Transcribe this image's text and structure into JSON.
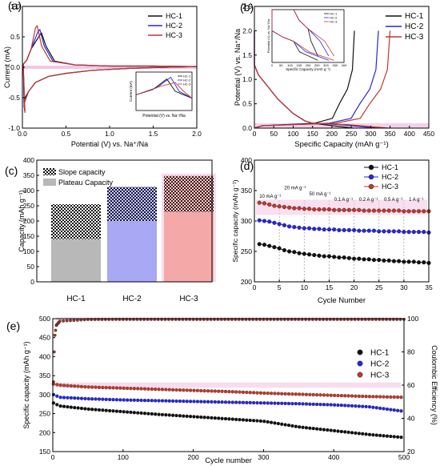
{
  "colors": {
    "HC-1": "#111111",
    "HC-2": "#2626e0",
    "HC-3": "#c0392b",
    "pink_band": "#f2c6e4",
    "slope_gray": "#3a3a3a",
    "plateau_gray": "#b8b8b8"
  },
  "chart_data": [
    {
      "panel": "(a)",
      "type": "line",
      "xlabel": "Potential (V) vs. Na⁺/Na",
      "ylabel": "Current (mA)",
      "xlim": [
        0.0,
        2.0
      ],
      "ylim": [
        -1.0,
        1.0
      ],
      "xticks": [
        "0.0",
        "0.5",
        "1.0",
        "1.5",
        "2.0"
      ],
      "yticks": [
        "-1.0",
        "-0.5",
        "0.0",
        "0.5",
        "1.0"
      ],
      "legend": [
        "HC-1",
        "HC-2",
        "HC-3"
      ],
      "legend_position": "top-right",
      "series": [
        {
          "name": "HC-1",
          "anodic_peak": [
            0.22,
            0.56
          ],
          "cathodic_min": [
            0.01,
            -0.66
          ]
        },
        {
          "name": "HC-2",
          "anodic_peak": [
            0.2,
            0.62
          ],
          "cathodic_min": [
            0.01,
            -0.72
          ]
        },
        {
          "name": "HC-3",
          "anodic_peak": [
            0.17,
            0.68
          ],
          "cathodic_min": [
            0.01,
            -0.75
          ]
        }
      ],
      "inset": {
        "xlabel": "Potential (V) vs. Na⁺/Na",
        "ylabel": "Current (mA)",
        "legend": [
          "HC-1",
          "HC-2",
          "HC-3"
        ]
      }
    },
    {
      "panel": "(b)",
      "type": "line",
      "xlabel": "Specific Capacity (mAh g⁻¹)",
      "ylabel": "Potential (V) vs. Na⁺/Na",
      "xlim": [
        0,
        450
      ],
      "ylim": [
        0.0,
        2.5
      ],
      "xticks": [
        "0",
        "50",
        "100",
        "150",
        "200",
        "250",
        "300",
        "350",
        "400",
        "450"
      ],
      "yticks": [
        "0.0",
        "0.5",
        "1.0",
        "1.5",
        "2.0",
        "2.5"
      ],
      "legend": [
        "HC-1",
        "HC-2",
        "HC-3"
      ],
      "legend_position": "top-right",
      "series": [
        {
          "name": "HC-1",
          "discharge_capacity": 255,
          "charge_capacity": 258
        },
        {
          "name": "HC-2",
          "discharge_capacity": 315,
          "charge_capacity": 320
        },
        {
          "name": "HC-3",
          "discharge_capacity": 345,
          "charge_capacity": 350
        }
      ],
      "inset": {
        "xlabel": "Specific Capacity (mAh g⁻¹)",
        "ylabel": "Potential (V) vs. Na⁺/Na",
        "xticks": [
          "0",
          "50",
          "100",
          "150",
          "200",
          "250",
          "300",
          "350",
          "400"
        ],
        "legend": [
          "HC-1",
          "HC-2",
          "HC-3"
        ]
      }
    },
    {
      "panel": "(c)",
      "type": "bar",
      "ylabel": "Capacity (mAh g⁻¹)",
      "ylim": [
        0,
        400
      ],
      "yticks": [
        "0",
        "50",
        "100",
        "150",
        "200",
        "250",
        "300",
        "350",
        "400"
      ],
      "categories": [
        "HC-1",
        "HC-2",
        "HC-3"
      ],
      "series": [
        {
          "name": "Plateau Capacity",
          "values": [
            140,
            200,
            230
          ]
        },
        {
          "name": "Slope capacity",
          "values": [
            115,
            112,
            118
          ]
        }
      ],
      "legend": [
        "Slope capacity",
        "Plateau Capacity"
      ],
      "legend_position": "top-left",
      "stacked": true
    },
    {
      "panel": "(d)",
      "type": "scatter",
      "xlabel": "Cycle Number",
      "ylabel": "Specific capacity (mAh g⁻¹)",
      "xlim": [
        0,
        35
      ],
      "ylim": [
        200,
        400
      ],
      "xticks": [
        "0",
        "5",
        "10",
        "15",
        "20",
        "25",
        "30",
        "35"
      ],
      "yticks": [
        "200",
        "250",
        "300",
        "350",
        "400"
      ],
      "legend": [
        "HC-1",
        "HC-2",
        "HC-3"
      ],
      "legend_position": "top-right",
      "rate_labels": [
        "10 mA g⁻¹",
        "20 mA g⁻¹",
        "50 mA g⁻¹",
        "0.1 A g⁻¹",
        "0.2 A g⁻¹",
        "0.5 A g⁻¹",
        "1 A g⁻¹"
      ],
      "rate_boundaries": [
        5,
        10,
        15,
        20,
        25,
        30
      ],
      "series": [
        {
          "name": "HC-1",
          "values": [
            262,
            261,
            259,
            257,
            255,
            252,
            250,
            249,
            247,
            246,
            245,
            244,
            243,
            242,
            242,
            241,
            240,
            240,
            239,
            238,
            238,
            237,
            237,
            236,
            236,
            235,
            235,
            234,
            234,
            233,
            233,
            233,
            232,
            232,
            231
          ]
        },
        {
          "name": "HC-2",
          "values": [
            301,
            300,
            299,
            297,
            295,
            293,
            291,
            290,
            289,
            288,
            288,
            287,
            287,
            286,
            286,
            286,
            285,
            285,
            285,
            285,
            284,
            284,
            284,
            284,
            283,
            283,
            283,
            283,
            283,
            282,
            282,
            282,
            282,
            282,
            281
          ]
        },
        {
          "name": "HC-3",
          "values": [
            330,
            329,
            327,
            325,
            324,
            323,
            322,
            321,
            321,
            320,
            320,
            319,
            319,
            319,
            319,
            318,
            318,
            318,
            318,
            318,
            318,
            317,
            317,
            317,
            317,
            317,
            317,
            317,
            317,
            316,
            316,
            316,
            316,
            316,
            316
          ]
        }
      ]
    },
    {
      "panel": "(e)",
      "type": "scatter",
      "xlabel": "Cycle number",
      "ylabel": "Specific capacity (mAh g⁻¹)",
      "y2label": "Coulombic Efficiency (%)",
      "xlim": [
        0,
        500
      ],
      "ylim": [
        150,
        500
      ],
      "y2lim": [
        20,
        100
      ],
      "xticks": [
        "0",
        "100",
        "200",
        "300",
        "400",
        "500"
      ],
      "yticks": [
        "150",
        "200",
        "250",
        "300",
        "350",
        "400",
        "450",
        "500"
      ],
      "y2ticks": [
        "20",
        "40",
        "60",
        "80",
        "100"
      ],
      "legend": [
        "HC-1",
        "HC-2",
        "HC-3"
      ],
      "legend_position": "center-right",
      "series": [
        {
          "name": "HC-1",
          "x": [
            1,
            10,
            50,
            100,
            150,
            200,
            250,
            300,
            350,
            400,
            450,
            500
          ],
          "values": [
            278,
            270,
            262,
            255,
            248,
            242,
            236,
            230,
            215,
            205,
            195,
            187
          ]
        },
        {
          "name": "HC-2",
          "x": [
            1,
            10,
            50,
            100,
            150,
            200,
            250,
            300,
            350,
            400,
            450,
            500
          ],
          "values": [
            300,
            293,
            289,
            286,
            284,
            282,
            280,
            278,
            276,
            273,
            268,
            256
          ]
        },
        {
          "name": "HC-3",
          "x": [
            1,
            10,
            50,
            100,
            150,
            200,
            250,
            300,
            350,
            400,
            450,
            500
          ],
          "values": [
            328,
            325,
            320,
            317,
            314,
            311,
            308,
            304,
            301,
            298,
            295,
            293
          ]
        },
        {
          "name": "CE",
          "x": [
            1,
            2,
            3,
            5,
            10,
            50,
            100,
            200,
            300,
            400,
            500
          ],
          "values": [
            62,
            80,
            90,
            96,
            98.5,
            99.5,
            99.6,
            99.6,
            99.6,
            99.6,
            99.6
          ]
        }
      ]
    }
  ]
}
